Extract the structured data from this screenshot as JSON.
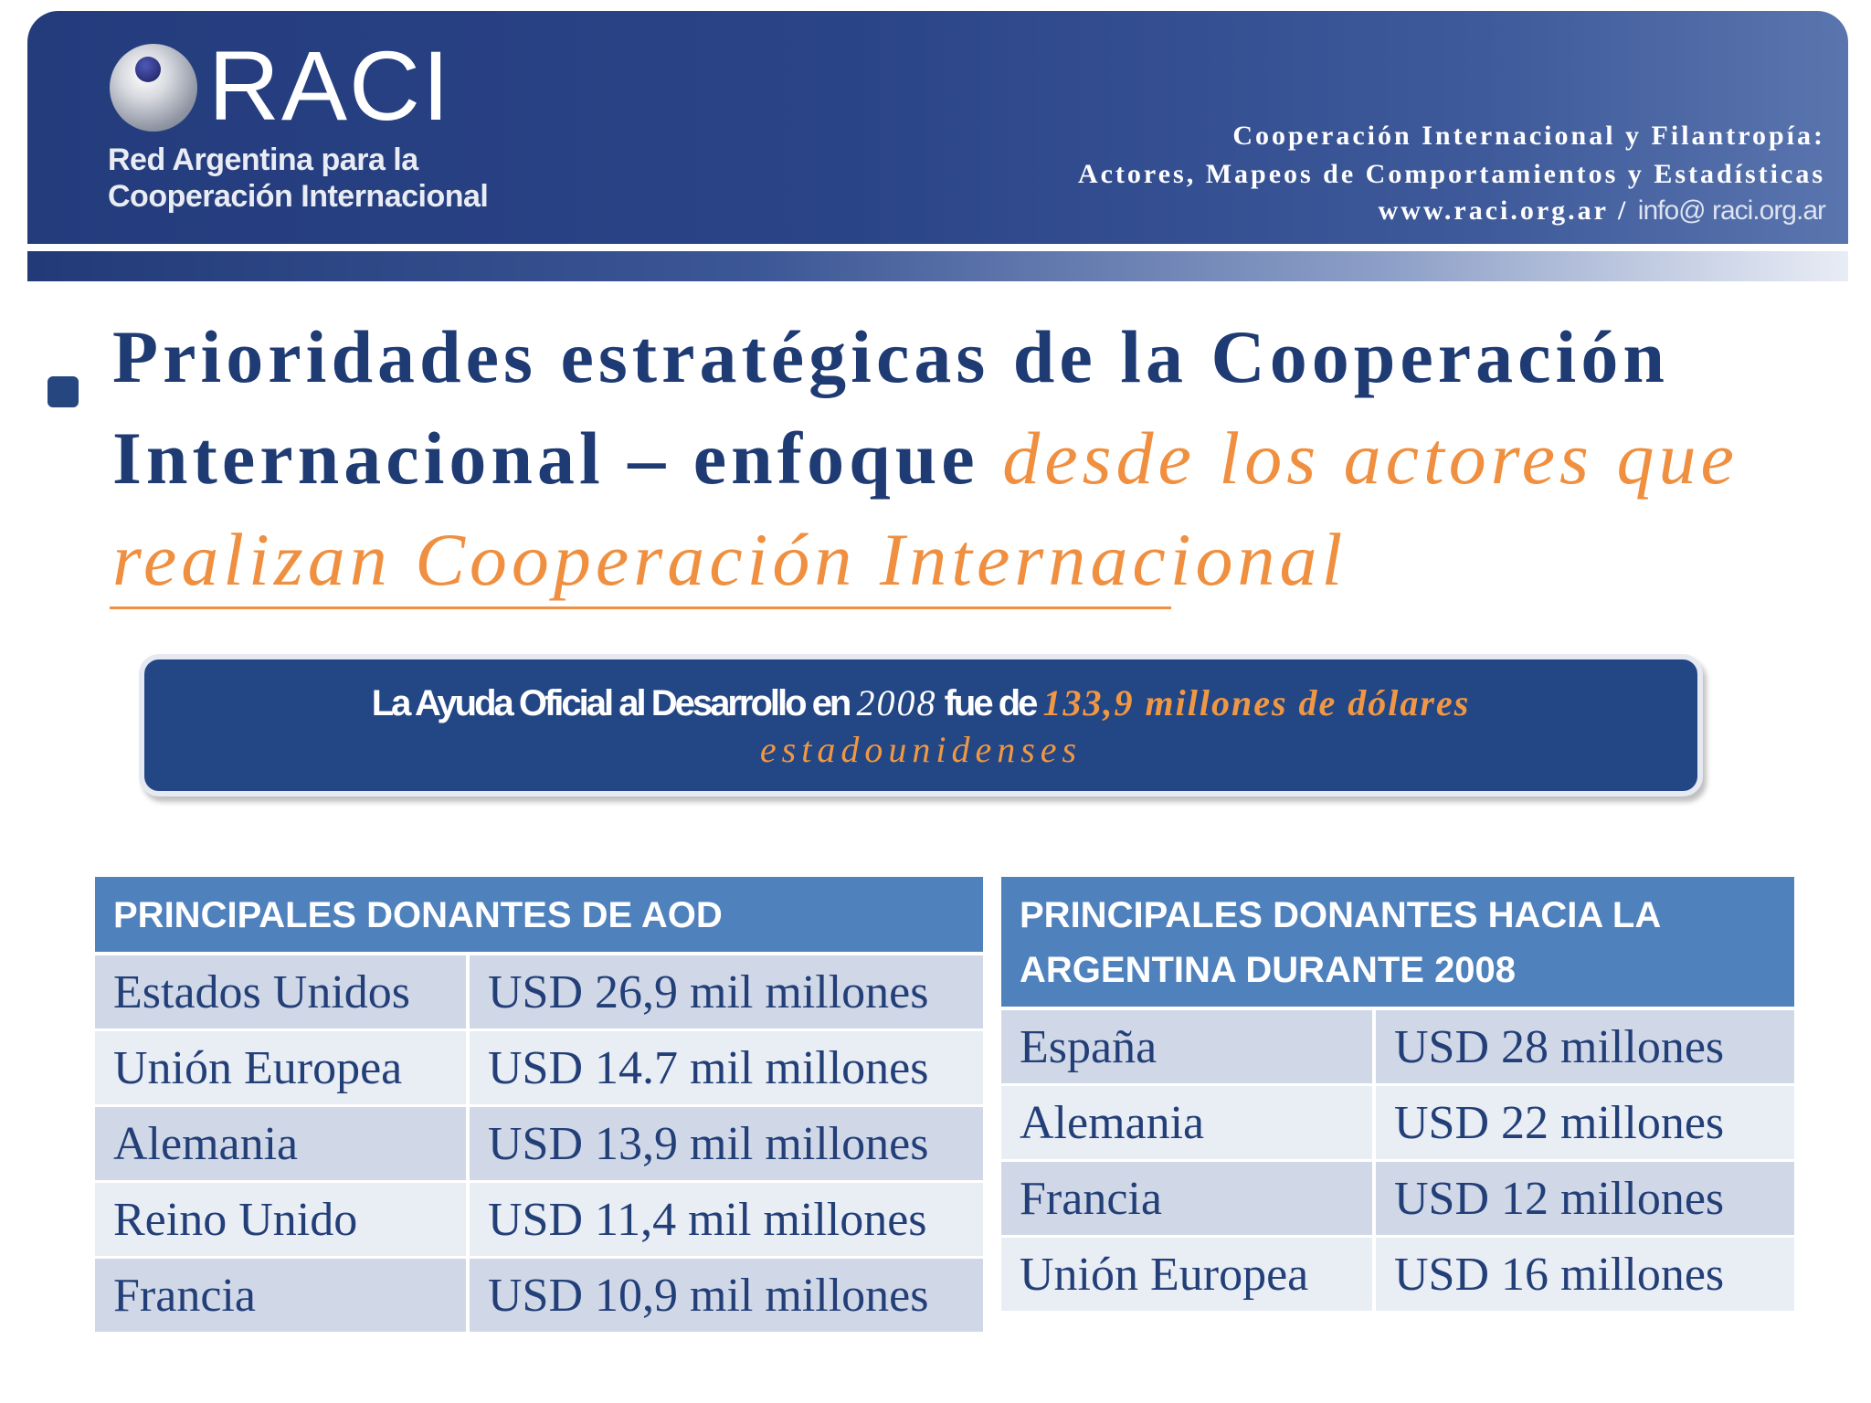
{
  "header": {
    "logo_text": "RACI",
    "logo_subtitle_1": "Red Argentina para la",
    "logo_subtitle_2": "Cooperación Internacional",
    "line1": "Cooperación Internacional y Filantropía:",
    "line2": "Actores, Mapeos de Comportamientos y Estadísticas",
    "website": "www.raci.org.ar",
    "separator": " / ",
    "email": "info@ raci.org.ar"
  },
  "title": {
    "part1": "Prioridades estratégicas de la Cooperación Internacional – enfoque ",
    "part2": "desde los actores que realizan Cooperación Internacional"
  },
  "callout": {
    "text_a": "La Ayuda Oficial al Desarrollo en ",
    "year": "2008",
    "text_b": " fue de ",
    "amount": "133,9 millones",
    "text_c": " de dólares",
    "line2": "estadounidenses"
  },
  "table_left": {
    "header": "PRINCIPALES DONANTES DE AOD",
    "rows": [
      {
        "donor": "Estados Unidos",
        "amount": "USD 26,9 mil millones"
      },
      {
        "donor": "Unión Europea",
        "amount": "USD 14.7 mil millones"
      },
      {
        "donor": "Alemania",
        "amount": "USD 13,9 mil millones"
      },
      {
        "donor": "Reino Unido",
        "amount": "USD 11,4 mil millones"
      },
      {
        "donor": "Francia",
        "amount": "USD 10,9 mil millones"
      }
    ]
  },
  "table_right": {
    "header": "PRINCIPALES DONANTES HACIA LA ARGENTINA DURANTE 2008",
    "rows": [
      {
        "donor": "España",
        "amount": "USD 28 millones"
      },
      {
        "donor": "Alemania",
        "amount": "USD 22 millones"
      },
      {
        "donor": "Francia",
        "amount": "USD 12 millones"
      },
      {
        "donor": "Unión Europea",
        "amount": "USD 16 millones"
      }
    ]
  },
  "colors": {
    "navy": "#1f3b73",
    "accent_orange": "#ef8f3f",
    "table_header_blue": "#4f81bd",
    "row_dark": "#d0d8e8",
    "row_light": "#e9edf4"
  }
}
